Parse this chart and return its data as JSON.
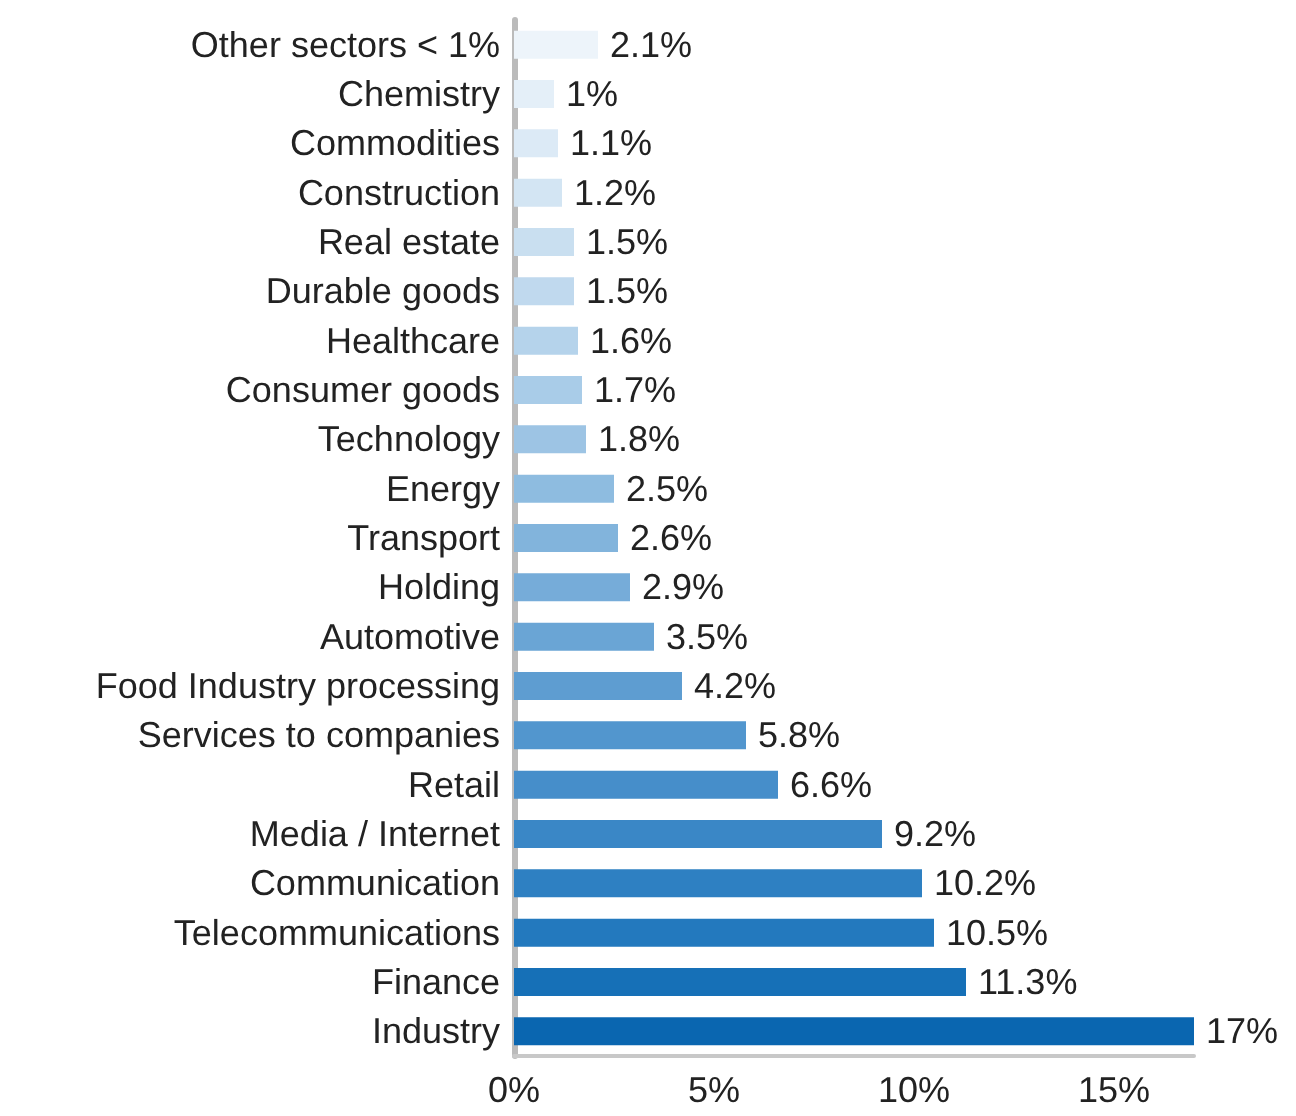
{
  "chart_data": {
    "type": "bar",
    "orientation": "horizontal",
    "categories": [
      "Other sectors < 1%",
      "Chemistry",
      "Commodities",
      "Construction",
      "Real estate",
      "Durable goods",
      "Healthcare",
      "Consumer goods",
      "Technology",
      "Energy",
      "Transport",
      "Holding",
      "Automotive",
      "Food Industry processing",
      "Services to companies",
      "Retail",
      "Media / Internet",
      "Communication",
      "Telecommunications",
      "Finance",
      "Industry"
    ],
    "values": [
      2.1,
      1,
      1.1,
      1.2,
      1.5,
      1.5,
      1.6,
      1.7,
      1.8,
      2.5,
      2.6,
      2.9,
      3.5,
      4.2,
      5.8,
      6.6,
      9.2,
      10.2,
      10.5,
      11.3,
      17
    ],
    "value_labels": [
      "2.1%",
      "1%",
      "1.1%",
      "1.2%",
      "1.5%",
      "1.5%",
      "1.6%",
      "1.7%",
      "1.8%",
      "2.5%",
      "2.6%",
      "2.9%",
      "3.5%",
      "4.2%",
      "5.8%",
      "6.6%",
      "9.2%",
      "10.2%",
      "10.5%",
      "11.3%",
      "17%"
    ],
    "colors": [
      "#edf4fa",
      "#e4eff8",
      "#dceaf6",
      "#d3e5f3",
      "#c9dff0",
      "#c0d9ee",
      "#b5d3eb",
      "#a9cce8",
      "#9dc4e4",
      "#8ebce0",
      "#82b4dc",
      "#76acd9",
      "#6aa5d5",
      "#5e9dd1",
      "#5296ce",
      "#468eca",
      "#3a87c6",
      "#2e80c2",
      "#2379be",
      "#1670b7",
      "#0a66b0"
    ],
    "xlim": [
      0,
      17
    ],
    "xticks": [
      {
        "value": 0,
        "label": "0%"
      },
      {
        "value": 5,
        "label": "5%"
      },
      {
        "value": 10,
        "label": "10%"
      },
      {
        "value": 15,
        "label": "15%"
      }
    ],
    "grid": false
  }
}
